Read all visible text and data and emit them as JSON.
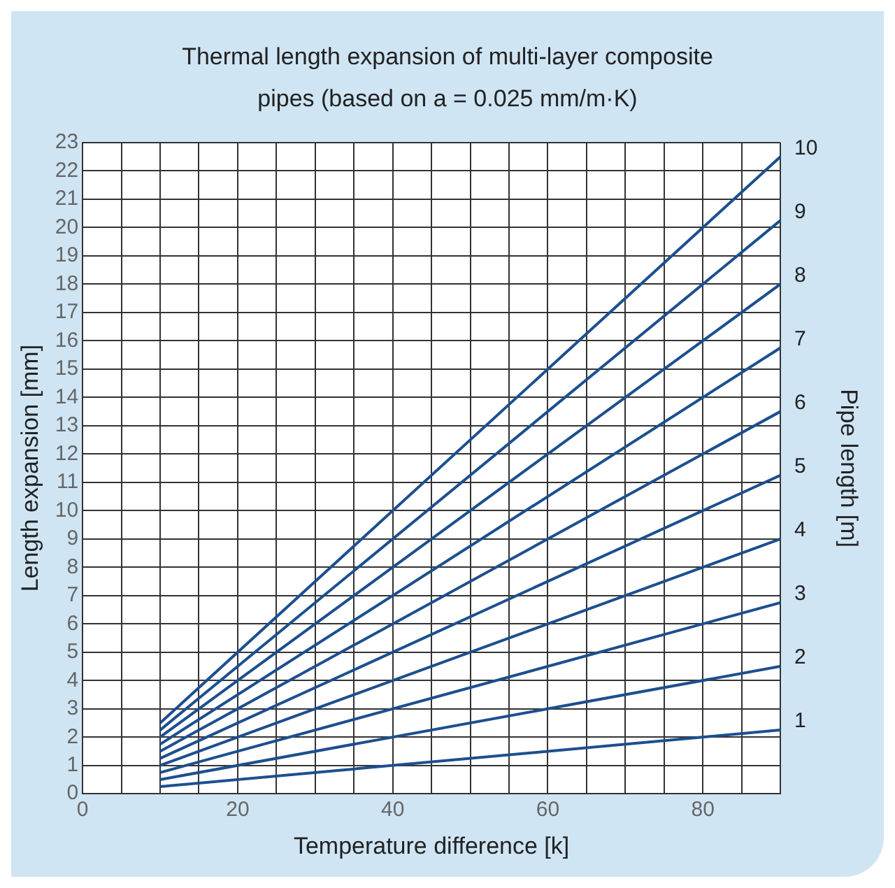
{
  "chart_data": {
    "type": "line",
    "title": "Thermal length expansion of multi-layer composite pipes (based on a = 0.025 mm/m·K)",
    "xlabel": "Temperature difference [k]",
    "ylabel": "Length expansion [mm]",
    "y2label": "Pipe length [m]",
    "x": [
      10,
      90
    ],
    "xlim": [
      0,
      90
    ],
    "xticks": [
      0,
      {
        "value": 5,
        "label": null
      },
      {
        "value": 10,
        "label": null
      },
      {
        "value": 15,
        "label": null
      },
      20,
      {
        "value": 25,
        "label": null
      },
      {
        "value": 30,
        "label": null
      },
      {
        "value": 35,
        "label": null
      },
      40,
      {
        "value": 45,
        "label": null
      },
      {
        "value": 50,
        "label": null
      },
      {
        "value": 55,
        "label": null
      },
      60,
      {
        "value": 65,
        "label": null
      },
      {
        "value": 70,
        "label": null
      },
      {
        "value": 75,
        "label": null
      },
      80,
      {
        "value": 85,
        "label": null
      },
      {
        "value": 90,
        "label": null
      }
    ],
    "ylim": [
      0,
      23
    ],
    "yticks": [
      0,
      1,
      2,
      3,
      4,
      5,
      6,
      7,
      8,
      9,
      10,
      11,
      12,
      13,
      14,
      15,
      16,
      17,
      18,
      19,
      20,
      21,
      22,
      23
    ],
    "grid": true,
    "legend": false,
    "marker": "none",
    "line_style": "solid",
    "series": [
      {
        "name": "1",
        "color": "#1c4f8f",
        "values": [
          0.25,
          2.25
        ]
      },
      {
        "name": "2",
        "color": "#1c4f8f",
        "values": [
          0.5,
          4.5
        ]
      },
      {
        "name": "3",
        "color": "#1c4f8f",
        "values": [
          0.75,
          6.75
        ]
      },
      {
        "name": "4",
        "color": "#1c4f8f",
        "values": [
          1,
          9
        ]
      },
      {
        "name": "5",
        "color": "#1c4f8f",
        "values": [
          1.25,
          11.25
        ]
      },
      {
        "name": "6",
        "color": "#1c4f8f",
        "values": [
          1.5,
          13.5
        ]
      },
      {
        "name": "7",
        "color": "#1c4f8f",
        "values": [
          1.75,
          15.75
        ]
      },
      {
        "name": "8",
        "color": "#1c4f8f",
        "values": [
          2,
          18
        ]
      },
      {
        "name": "9",
        "color": "#1c4f8f",
        "values": [
          2.25,
          20.25
        ]
      },
      {
        "name": "10",
        "color": "#1c4f8f",
        "values": [
          2.5,
          22.5
        ]
      }
    ]
  }
}
